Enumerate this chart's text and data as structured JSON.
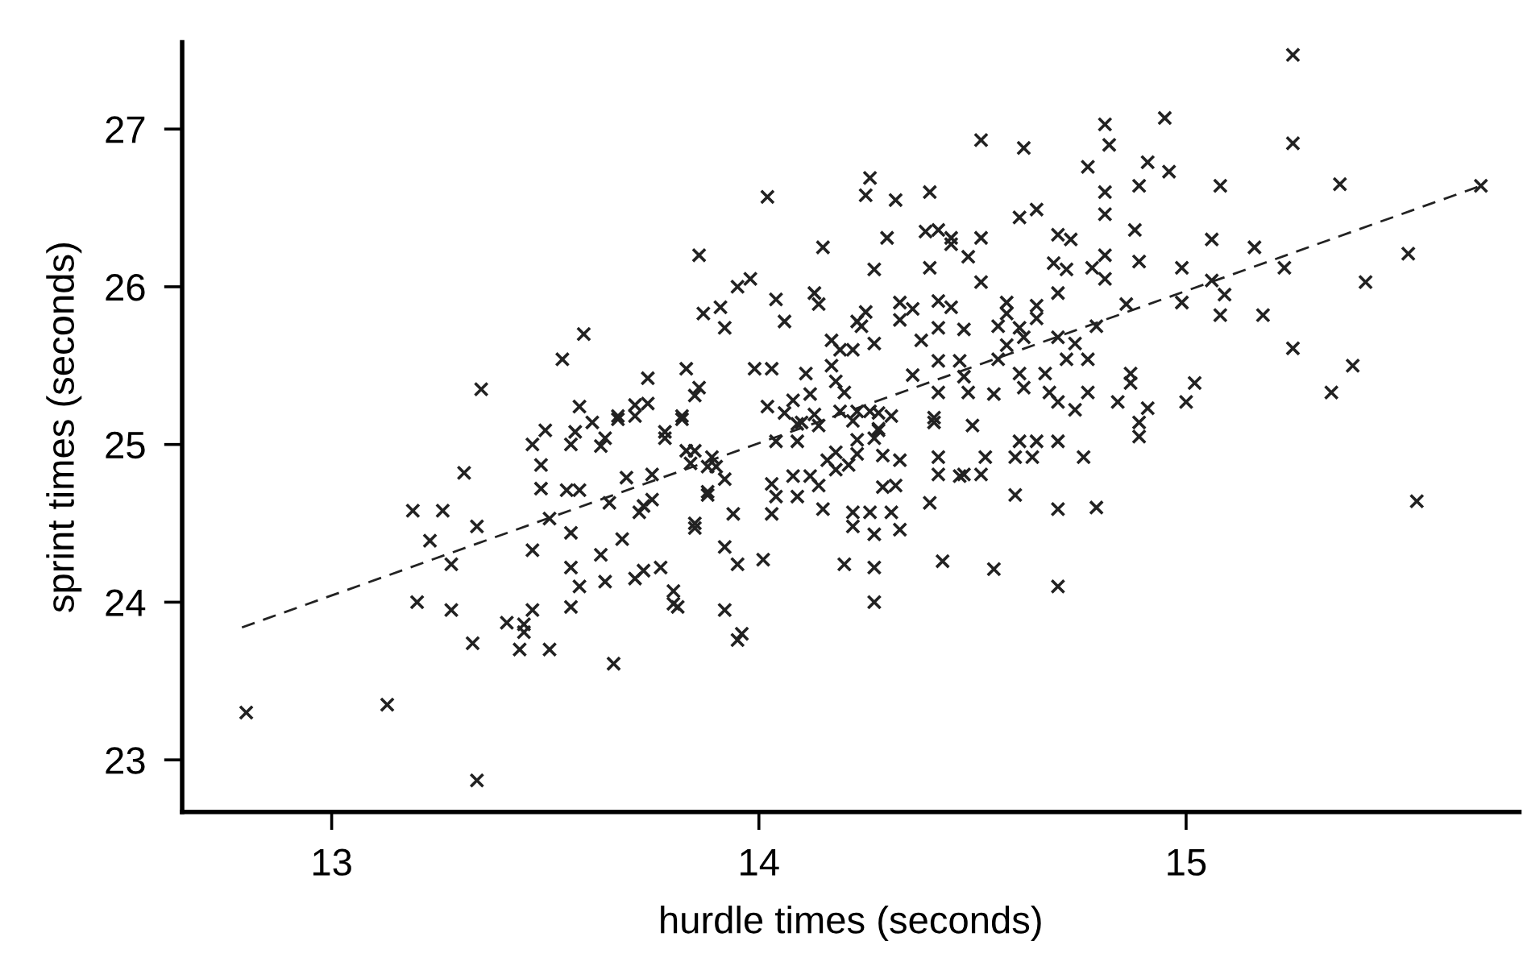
{
  "chart_data": {
    "type": "scatter",
    "xlabel": "hurdle times (seconds)",
    "ylabel": "sprint times (seconds)",
    "xlim": [
      12.65,
      15.78
    ],
    "ylim": [
      22.67,
      27.55
    ],
    "xticks": [
      13,
      14,
      15
    ],
    "yticks": [
      23,
      24,
      25,
      26,
      27
    ],
    "grid": false,
    "legend": false,
    "series": [
      {
        "color": "#222222",
        "marker": "cross",
        "x": [
          12.8,
          13.13,
          13.34,
          13.19,
          13.26,
          13.23,
          13.31,
          13.34,
          13.28,
          13.2,
          13.28,
          13.33,
          13.41,
          13.45,
          13.45,
          13.47,
          13.44,
          13.51,
          13.47,
          13.47,
          13.49,
          13.49,
          13.51,
          13.5,
          13.56,
          13.57,
          13.55,
          13.58,
          13.56,
          13.56,
          13.58,
          13.56,
          13.63,
          13.64,
          13.61,
          13.67,
          13.69,
          13.65,
          13.63,
          13.64,
          13.68,
          13.66,
          13.72,
          13.73,
          13.75,
          13.75,
          13.71,
          13.73,
          13.77,
          13.8,
          13.8,
          13.81,
          13.78,
          13.82,
          13.83,
          13.85,
          13.84,
          13.88,
          13.88,
          13.85,
          13.85,
          13.89,
          13.9,
          13.92,
          13.88,
          13.94,
          13.92,
          13.95,
          14.01,
          13.92,
          13.96,
          13.95,
          14.03,
          14.04,
          14.03,
          14.04,
          14.09,
          14.08,
          14.09,
          14.12,
          14.14,
          14.15,
          14.14,
          14.1,
          14.16,
          14.18,
          14.18,
          14.21,
          14.23,
          14.22,
          14.23,
          14.27,
          14.28,
          14.29,
          14.33,
          14.29,
          14.32,
          14.22,
          14.22,
          14.26,
          14.27,
          14.31,
          14.33,
          14.2,
          14.27,
          14.27,
          14.41,
          14.5,
          14.42,
          14.42,
          14.47,
          14.48,
          14.53,
          14.52,
          14.4,
          14.43,
          14.55,
          14.61,
          14.6,
          14.64,
          14.65,
          14.7,
          14.76,
          14.6,
          14.7,
          14.79,
          14.7,
          14.89,
          14.89,
          13.86,
          13.87,
          13.91,
          13.92,
          13.95,
          13.98,
          14.02,
          14.04,
          14.06,
          14.15,
          14.13,
          14.14,
          13.99,
          14.03,
          14.11,
          14.02,
          14.08,
          14.12,
          14.06,
          14.09,
          14.13,
          13.86,
          14.17,
          14.19,
          14.22,
          14.17,
          14.18,
          14.2,
          14.19,
          14.23,
          14.26,
          14.28,
          14.31,
          14.28,
          14.23,
          14.25,
          14.24,
          14.27,
          14.26,
          14.25,
          14.32,
          14.3,
          14.27,
          14.33,
          14.36,
          14.33,
          14.38,
          14.36,
          14.4,
          14.39,
          14.42,
          14.45,
          14.45,
          14.4,
          14.49,
          14.52,
          14.52,
          14.42,
          14.45,
          14.42,
          14.42,
          14.42,
          14.41,
          14.48,
          14.47,
          14.48,
          14.49,
          14.55,
          14.52,
          14.62,
          14.61,
          14.65,
          14.58,
          14.58,
          14.56,
          14.61,
          14.62,
          14.65,
          14.65,
          14.58,
          14.56,
          14.61,
          14.62,
          14.67,
          14.68,
          14.7,
          14.73,
          14.69,
          14.72,
          14.7,
          14.7,
          14.74,
          14.72,
          14.77,
          14.7,
          14.74,
          14.77,
          14.79,
          14.77,
          14.81,
          14.82,
          14.81,
          14.81,
          14.81,
          14.78,
          14.81,
          14.86,
          14.88,
          14.89,
          14.89,
          14.91,
          14.95,
          14.96,
          14.87,
          14.87,
          14.84,
          14.91,
          14.99,
          14.99,
          15.02,
          15.0,
          15.08,
          15.06,
          15.06,
          15.09,
          15.08,
          13.59,
          13.54,
          13.35,
          13.83,
          13.74,
          13.85,
          13.58,
          13.74,
          13.71,
          13.67,
          13.71,
          13.82,
          13.78,
          15.25,
          15.25,
          15.36,
          15.69,
          15.16,
          15.23,
          15.52,
          15.42,
          15.18,
          15.25,
          15.39,
          15.34,
          15.54
        ],
        "values": [
          23.3,
          23.35,
          22.87,
          24.58,
          24.58,
          24.39,
          24.82,
          24.48,
          24.24,
          24.0,
          23.95,
          23.74,
          23.87,
          23.86,
          23.81,
          23.95,
          23.7,
          23.7,
          24.33,
          25.0,
          24.87,
          24.72,
          24.53,
          25.09,
          25.0,
          25.08,
          24.71,
          24.71,
          24.44,
          24.22,
          24.1,
          23.97,
          24.99,
          25.04,
          25.14,
          25.16,
          24.79,
          24.63,
          24.3,
          24.13,
          24.4,
          23.61,
          24.57,
          24.61,
          24.81,
          24.65,
          24.15,
          24.2,
          24.22,
          24.07,
          23.99,
          23.97,
          25.04,
          25.16,
          24.96,
          24.96,
          24.88,
          24.86,
          24.68,
          24.5,
          24.47,
          24.92,
          24.86,
          24.78,
          24.7,
          24.56,
          24.35,
          24.24,
          24.27,
          23.95,
          23.8,
          23.76,
          24.75,
          24.67,
          24.56,
          25.02,
          25.02,
          24.8,
          24.67,
          24.8,
          24.74,
          24.59,
          25.12,
          25.14,
          24.9,
          24.84,
          24.95,
          24.87,
          24.94,
          25.15,
          25.03,
          25.04,
          25.09,
          24.93,
          24.9,
          24.73,
          24.74,
          24.57,
          24.48,
          24.57,
          24.43,
          24.57,
          24.46,
          24.24,
          24.22,
          24.0,
          25.14,
          25.12,
          24.92,
          24.81,
          24.8,
          24.81,
          24.92,
          24.81,
          24.63,
          24.26,
          24.21,
          25.02,
          24.92,
          24.92,
          25.02,
          25.02,
          24.92,
          24.68,
          24.59,
          24.6,
          24.1,
          25.14,
          25.05,
          26.2,
          25.83,
          25.87,
          25.74,
          26.0,
          26.05,
          26.57,
          25.92,
          25.78,
          26.25,
          25.96,
          25.89,
          25.48,
          25.48,
          25.45,
          25.24,
          25.28,
          25.32,
          25.2,
          25.13,
          25.19,
          25.36,
          25.66,
          25.6,
          25.6,
          25.5,
          25.4,
          25.33,
          25.21,
          25.21,
          25.21,
          25.2,
          25.18,
          25.1,
          25.78,
          25.84,
          25.75,
          25.64,
          26.69,
          26.58,
          26.55,
          26.31,
          26.11,
          25.9,
          25.86,
          25.79,
          25.66,
          25.44,
          26.6,
          26.35,
          26.36,
          26.31,
          26.27,
          26.12,
          26.19,
          26.31,
          26.03,
          25.91,
          25.87,
          25.74,
          25.53,
          25.33,
          25.17,
          25.73,
          25.53,
          25.43,
          25.33,
          25.32,
          26.93,
          26.88,
          26.44,
          26.49,
          25.9,
          25.83,
          25.75,
          25.74,
          25.68,
          25.88,
          25.8,
          25.63,
          25.54,
          25.45,
          25.36,
          25.45,
          25.33,
          26.33,
          26.3,
          26.15,
          26.11,
          25.96,
          25.68,
          25.64,
          25.54,
          25.54,
          25.27,
          25.22,
          25.33,
          25.75,
          26.76,
          27.03,
          26.9,
          26.6,
          26.46,
          26.2,
          26.12,
          26.05,
          25.89,
          26.36,
          26.64,
          26.16,
          26.79,
          27.07,
          26.73,
          25.45,
          25.39,
          25.27,
          25.23,
          26.12,
          25.9,
          25.39,
          25.27,
          26.64,
          26.3,
          26.04,
          25.95,
          25.82,
          25.7,
          25.54,
          25.35,
          25.48,
          25.42,
          25.31,
          25.24,
          25.26,
          25.25,
          25.18,
          25.18,
          25.18,
          25.08,
          27.47,
          26.91,
          26.65,
          26.64,
          26.25,
          26.12,
          26.21,
          26.03,
          25.82,
          25.61,
          25.5,
          25.33,
          24.64
        ]
      },
      {
        "type": "line",
        "color": "#222222",
        "line_style": "dashed",
        "marker": "none",
        "x": [
          12.79,
          15.69
        ],
        "values": [
          23.84,
          26.64
        ]
      }
    ]
  }
}
